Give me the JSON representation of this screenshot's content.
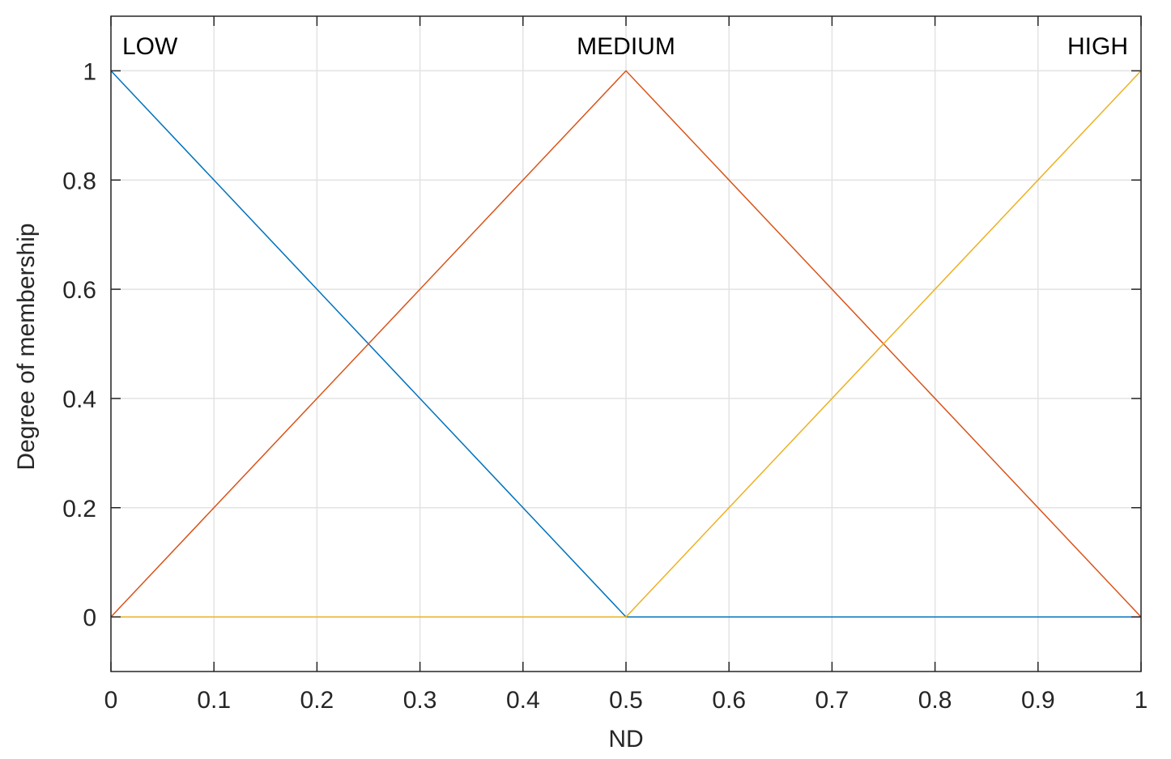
{
  "chart_data": {
    "type": "line",
    "title": "",
    "xlabel": "ND",
    "ylabel": "Degree of membership",
    "xlim": [
      0,
      1
    ],
    "ylim": [
      -0.1,
      1.1
    ],
    "xticks": [
      0,
      0.1,
      0.2,
      0.3,
      0.4,
      0.5,
      0.6,
      0.7,
      0.8,
      0.9,
      1
    ],
    "xtick_labels": [
      "0",
      "0.1",
      "0.2",
      "0.3",
      "0.4",
      "0.5",
      "0.6",
      "0.7",
      "0.8",
      "0.9",
      "1"
    ],
    "yticks": [
      0,
      0.2,
      0.4,
      0.6,
      0.8,
      1
    ],
    "ytick_labels": [
      "0",
      "0.2",
      "0.4",
      "0.6",
      "0.8",
      "1"
    ],
    "grid": true,
    "series": [
      {
        "name": "LOW",
        "color": "#0072BD",
        "x": [
          0,
          0.5,
          1
        ],
        "y": [
          1,
          0,
          0
        ]
      },
      {
        "name": "MEDIUM",
        "color": "#D95319",
        "x": [
          0,
          0.5,
          1
        ],
        "y": [
          0,
          1,
          0
        ]
      },
      {
        "name": "HIGH",
        "color": "#EDB120",
        "x": [
          0,
          0.5,
          1
        ],
        "y": [
          0,
          0,
          1
        ]
      }
    ],
    "annotations": [
      {
        "text": "LOW",
        "series": 0,
        "align": "left"
      },
      {
        "text": "MEDIUM",
        "series": 1,
        "align": "center"
      },
      {
        "text": "HIGH",
        "series": 2,
        "align": "right"
      }
    ]
  }
}
